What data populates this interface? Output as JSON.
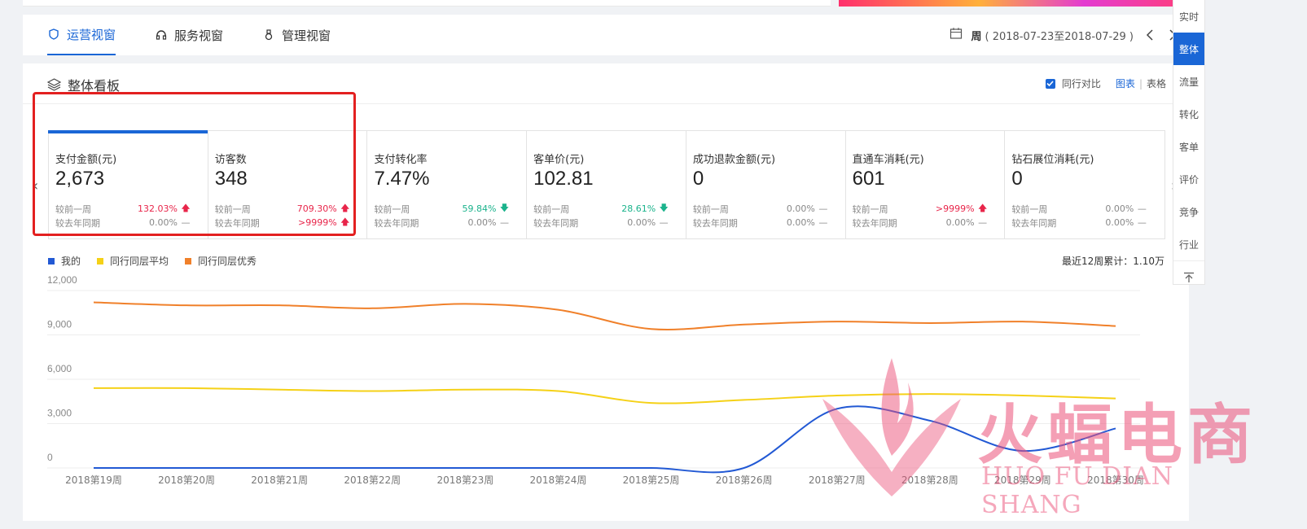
{
  "tabs": [
    {
      "label": "运营视窗",
      "icon": "operations-icon",
      "active": true
    },
    {
      "label": "服务视窗",
      "icon": "headset-icon",
      "active": false
    },
    {
      "label": "管理视窗",
      "icon": "manage-icon",
      "active": false
    }
  ],
  "date": {
    "period": "周",
    "range": "( 2018-07-23至2018-07-29 )"
  },
  "panel": {
    "title": "整体看板",
    "peer_compare_label": "同行对比",
    "view_chart": "图表",
    "view_separator": "|",
    "view_table": "表格"
  },
  "cards": [
    {
      "label": "支付金额(元)",
      "value": "2,673",
      "cmp1_label": "较前一周",
      "cmp1_value": "132.03%",
      "cmp1_dir": "up",
      "cmp2_label": "较去年同期",
      "cmp2_value": "0.00%",
      "cmp2_dir": "flat",
      "active": true
    },
    {
      "label": "访客数",
      "value": "348",
      "cmp1_label": "较前一周",
      "cmp1_value": "709.30%",
      "cmp1_dir": "up",
      "cmp2_label": "较去年同期",
      "cmp2_value": ">9999%",
      "cmp2_dir": "up",
      "active": false
    },
    {
      "label": "支付转化率",
      "value": "7.47%",
      "cmp1_label": "较前一周",
      "cmp1_value": "59.84%",
      "cmp1_dir": "down",
      "cmp2_label": "较去年同期",
      "cmp2_value": "0.00%",
      "cmp2_dir": "flat",
      "active": false
    },
    {
      "label": "客单价(元)",
      "value": "102.81",
      "cmp1_label": "较前一周",
      "cmp1_value": "28.61%",
      "cmp1_dir": "down",
      "cmp2_label": "较去年同期",
      "cmp2_value": "0.00%",
      "cmp2_dir": "flat",
      "active": false
    },
    {
      "label": "成功退款金额(元)",
      "value": "0",
      "cmp1_label": "较前一周",
      "cmp1_value": "0.00%",
      "cmp1_dir": "flat",
      "cmp2_label": "较去年同期",
      "cmp2_value": "0.00%",
      "cmp2_dir": "flat",
      "active": false
    },
    {
      "label": "直通车消耗(元)",
      "value": "601",
      "cmp1_label": "较前一周",
      "cmp1_value": ">9999%",
      "cmp1_dir": "up",
      "cmp2_label": "较去年同期",
      "cmp2_value": "0.00%",
      "cmp2_dir": "flat",
      "active": false
    },
    {
      "label": "钻石展位消耗(元)",
      "value": "0",
      "cmp1_label": "较前一周",
      "cmp1_value": "0.00%",
      "cmp1_dir": "flat",
      "cmp2_label": "较去年同期",
      "cmp2_value": "0.00%",
      "cmp2_dir": "flat",
      "active": false
    }
  ],
  "cumulative": "最近12周累计：1.10万",
  "sidenav": [
    "实时",
    "整体",
    "流量",
    "转化",
    "客单",
    "评价",
    "竞争",
    "行业"
  ],
  "sidenav_active": "整体",
  "watermark": {
    "main": "火蝠电商",
    "sub": "HUO FU DIAN SHANG"
  },
  "colors": {
    "accent": "#1a66d6",
    "up": "#e8254a",
    "down": "#1bb38c",
    "mine": "#2259d4",
    "avg": "#f5d117",
    "best": "#f0802a"
  },
  "chart_data": {
    "type": "line",
    "x": [
      "2018第19周",
      "2018第20周",
      "2018第21周",
      "2018第22周",
      "2018第23周",
      "2018第24周",
      "2018第25周",
      "2018第26周",
      "2018第27周",
      "2018第28周",
      "2018第29周",
      "2018第30周"
    ],
    "ylim": [
      0,
      12000
    ],
    "yticks": [
      "0",
      "3,000",
      "6,000",
      "9,000",
      "12,000"
    ],
    "ytick_values": [
      0,
      3000,
      6000,
      9000,
      12000
    ],
    "series": [
      {
        "name": "我的",
        "color": "#2259d4",
        "values": [
          0,
          0,
          0,
          0,
          0,
          0,
          0,
          0,
          4000,
          3200,
          1150,
          2673
        ]
      },
      {
        "name": "同行同层平均",
        "color": "#f5d117",
        "values": [
          5400,
          5400,
          5300,
          5200,
          5300,
          5200,
          4400,
          4600,
          4900,
          5000,
          4900,
          4700
        ]
      },
      {
        "name": "同行同层优秀",
        "color": "#f0802a",
        "values": [
          11200,
          11000,
          11000,
          10800,
          11100,
          10700,
          9400,
          9700,
          9900,
          9800,
          9900,
          9600
        ]
      }
    ]
  }
}
